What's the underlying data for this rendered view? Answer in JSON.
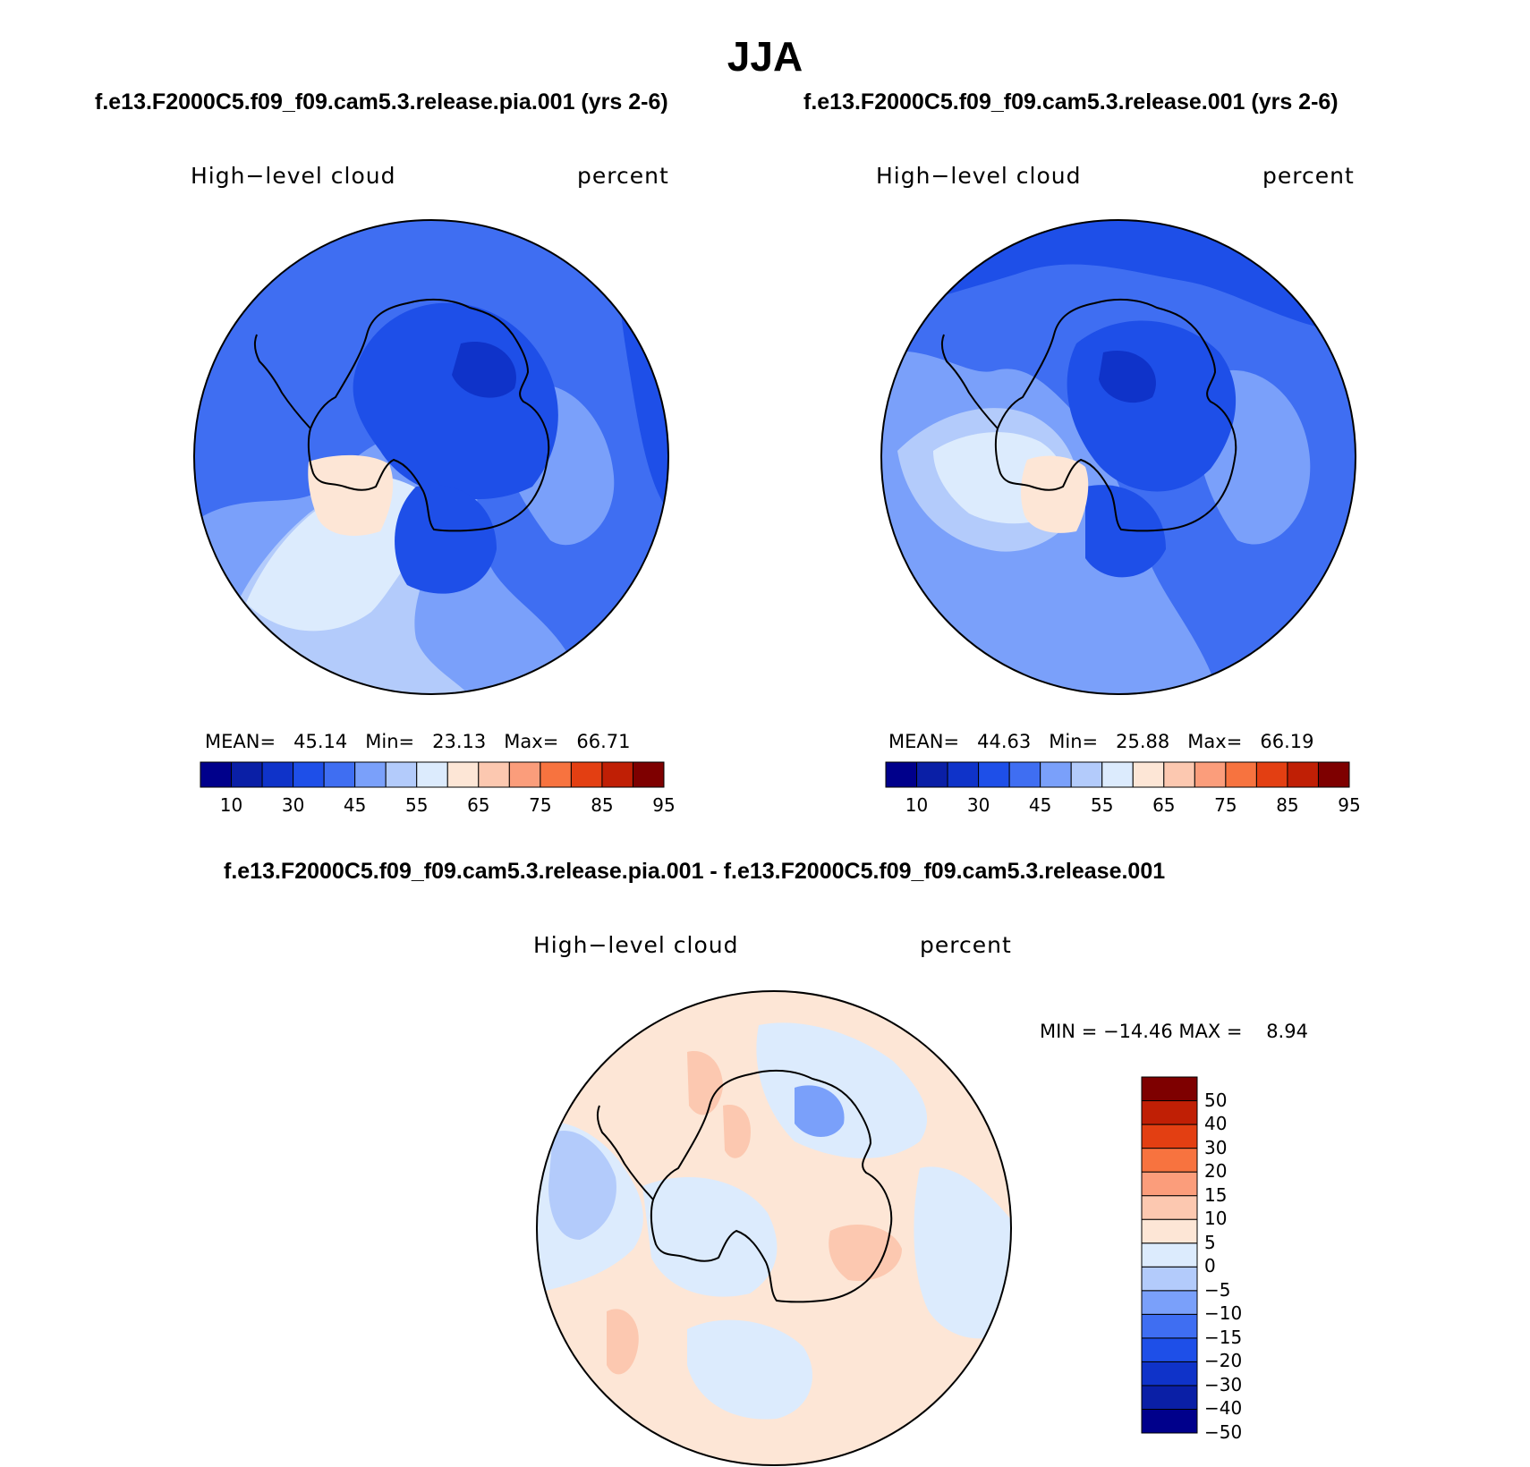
{
  "page_title": "JJA",
  "panels": [
    {
      "case": "f.e13.F2000C5.f09_f09.cam5.3.release.pia.001 (yrs 2-6)",
      "variable": "High−level cloud",
      "units": "percent",
      "mean_label": "MEAN=",
      "mean": "45.14",
      "min_label": "Min=",
      "min": "23.13",
      "max_label": "Max=",
      "max": "66.71"
    },
    {
      "case": "f.e13.F2000C5.f09_f09.cam5.3.release.001 (yrs 2-6)",
      "variable": "High−level cloud",
      "units": "percent",
      "mean_label": "MEAN=",
      "mean": "44.63",
      "min_label": "Min=",
      "min": "25.88",
      "max_label": "Max=",
      "max": "66.19"
    },
    {
      "case": "f.e13.F2000C5.f09_f09.cam5.3.release.pia.001 - f.e13.F2000C5.f09_f09.cam5.3.release.001",
      "variable": "High−level cloud",
      "units": "percent",
      "stats": "MIN = −14.46 MAX =    8.94"
    }
  ],
  "colors": {
    "levels": [
      "#00008b",
      "#0a1fa6",
      "#0f33c9",
      "#1e4fe8",
      "#3f6ef2",
      "#7aa0fa",
      "#b3cbfb",
      "#dcebfd",
      "#fde6d6",
      "#fcc8b0",
      "#fb9d7b",
      "#f7733f",
      "#e33f12",
      "#c01f05",
      "#7e0000"
    ]
  },
  "colorbars": {
    "abs_ticks": [
      "10",
      "30",
      "45",
      "55",
      "65",
      "75",
      "85",
      "95"
    ],
    "diff_ticks": [
      "50",
      "40",
      "30",
      "20",
      "15",
      "10",
      "5",
      "0",
      "−5",
      "−10",
      "−15",
      "−20",
      "−30",
      "−40",
      "−50"
    ]
  },
  "chart_data": [
    {
      "type": "heatmap",
      "projection": "south polar stereographic",
      "title": "High−level cloud",
      "units": "percent",
      "stats": {
        "mean": 45.14,
        "min": 23.13,
        "max": 66.71
      },
      "levels": [
        10,
        20,
        30,
        40,
        45,
        50,
        55,
        60,
        65,
        70,
        75,
        80,
        85,
        90,
        95
      ]
    },
    {
      "type": "heatmap",
      "projection": "south polar stereographic",
      "title": "High−level cloud",
      "units": "percent",
      "stats": {
        "mean": 44.63,
        "min": 25.88,
        "max": 66.19
      },
      "levels": [
        10,
        20,
        30,
        40,
        45,
        50,
        55,
        60,
        65,
        70,
        75,
        80,
        85,
        90,
        95
      ]
    },
    {
      "type": "heatmap",
      "projection": "south polar stereographic",
      "title": "High−level cloud",
      "units": "percent",
      "stats": {
        "min": -14.46,
        "max": 8.94
      },
      "levels": [
        -50,
        -40,
        -30,
        -20,
        -15,
        -10,
        -5,
        0,
        5,
        10,
        15,
        20,
        30,
        40,
        50
      ]
    }
  ]
}
